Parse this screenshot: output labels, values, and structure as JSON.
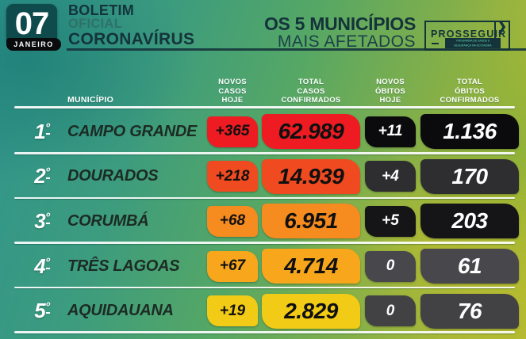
{
  "header": {
    "date_day": "07",
    "date_month": "JANEIRO",
    "title_line1": "BOLETIM",
    "title_line2": "OFICIAL",
    "title_line3": "CORONAVÍRUS",
    "right_title_line1": "OS 5 MUNICÍPIOS",
    "right_title_line2": "MAIS AFETADOS",
    "logo": {
      "name": "PROSSEGUIR",
      "chevron": "❯",
      "tagline_line1": "PROGRAMA DE SAÚDE E",
      "tagline_line2": "SEGURANÇA NA ECONOMIA"
    }
  },
  "table": {
    "municipio_header": "MUNICÍPIO",
    "col_headers": [
      "NOVOS\nCASOS\nHOJE",
      "TOTAL\nCASOS\nCONFIRMADOS",
      "NOVOS\nÓBITOS\nHOJE",
      "TOTAL\nÓBITOS\nCONFIRMADOS"
    ],
    "rows": [
      {
        "rank_num": "1",
        "rank_ord": "º",
        "municipio": "CAMPO GRANDE",
        "novos_casos": "+365",
        "total_casos": "62.989",
        "novos_obitos": "+11",
        "total_obitos": "1.136",
        "case_color": "#ee1b22",
        "death_color": "#0b0b0d"
      },
      {
        "rank_num": "2",
        "rank_ord": "º",
        "municipio": "DOURADOS",
        "novos_casos": "+218",
        "total_casos": "14.939",
        "novos_obitos": "+4",
        "total_obitos": "170",
        "case_color": "#f04a20",
        "death_color": "#2e2e31"
      },
      {
        "rank_num": "3",
        "rank_ord": "º",
        "municipio": "CORUMBÁ",
        "novos_casos": "+68",
        "total_casos": "6.951",
        "novos_obitos": "+5",
        "total_obitos": "203",
        "case_color": "#f68b1f",
        "death_color": "#151518"
      },
      {
        "rank_num": "4",
        "rank_ord": "º",
        "municipio": "TRÊS LAGOAS",
        "novos_casos": "+67",
        "total_casos": "4.714",
        "novos_obitos": "0",
        "total_obitos": "61",
        "case_color": "#f8a71d",
        "death_color": "#48484c"
      },
      {
        "rank_num": "5",
        "rank_ord": "º",
        "municipio": "AQUIDAUANA",
        "novos_casos": "+19",
        "total_casos": "2.829",
        "novos_obitos": "0",
        "total_obitos": "76",
        "case_color": "#f2cb17",
        "death_color": "#424245"
      }
    ]
  }
}
